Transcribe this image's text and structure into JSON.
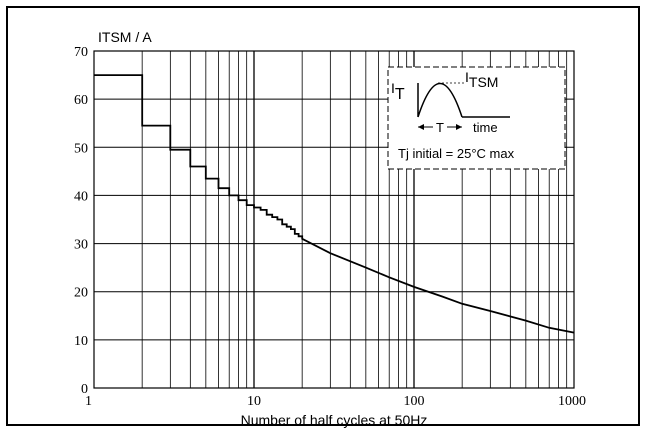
{
  "chart_data": {
    "type": "line",
    "title": "",
    "ylabel": "ITSM / A",
    "xlabel": "Number of half cycles at 50Hz",
    "x_scale": "log",
    "xlim": [
      1,
      1000
    ],
    "ylim": [
      0,
      70
    ],
    "grid": true,
    "x_ticks": [
      1,
      10,
      100,
      1000
    ],
    "x_tick_labels": [
      "1",
      "10",
      "100",
      "1000"
    ],
    "y_ticks": [
      0,
      10,
      20,
      30,
      40,
      50,
      60,
      70
    ],
    "y_tick_labels": [
      "0",
      "10",
      "20",
      "30",
      "40",
      "50",
      "60",
      "70"
    ],
    "series": [
      {
        "name": "",
        "step_values": [
          [
            1,
            65
          ],
          [
            2,
            54.5
          ],
          [
            3,
            49.5
          ],
          [
            4,
            46
          ],
          [
            5,
            43.5
          ],
          [
            6,
            41.5
          ],
          [
            7,
            40
          ],
          [
            8,
            39
          ],
          [
            9,
            38
          ],
          [
            10,
            37.5
          ],
          [
            11,
            37
          ],
          [
            12,
            36
          ],
          [
            13,
            35.5
          ],
          [
            14,
            35
          ],
          [
            15,
            34
          ],
          [
            16,
            33.5
          ],
          [
            17,
            33
          ],
          [
            18,
            32
          ],
          [
            19,
            31.5
          ],
          [
            20,
            31
          ]
        ],
        "points": [
          [
            20,
            31
          ],
          [
            30,
            28
          ],
          [
            50,
            25
          ],
          [
            70,
            23
          ],
          [
            100,
            21
          ],
          [
            150,
            19
          ],
          [
            200,
            17.5
          ],
          [
            300,
            16
          ],
          [
            500,
            14
          ],
          [
            700,
            12.5
          ],
          [
            1000,
            11.5
          ]
        ]
      }
    ],
    "inset": {
      "it_label": "I",
      "it_sub": "T",
      "itsm_label": "I",
      "itsm_sub": "TSM",
      "period_label": "T",
      "time_label": "time",
      "condition": "Tj initial = 25°C max"
    }
  }
}
